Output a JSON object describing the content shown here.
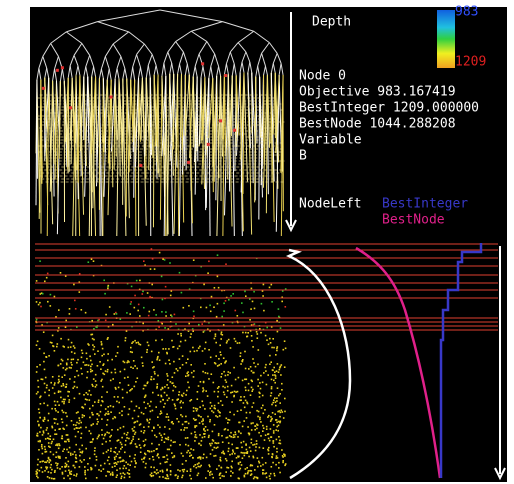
{
  "legend": {
    "axis_label": "Depth",
    "scale_top": "983",
    "scale_bottom": "1209"
  },
  "info": {
    "node": "Node 0",
    "objective": "Objective  983.167419",
    "best_integer": "BestInteger 1209.000000",
    "best_node": "BestNode 1044.288208",
    "variable": "Variable",
    "variable_value": "B"
  },
  "curve_legend": {
    "node_left": "NodeLeft",
    "best_integer": "BestInteger",
    "best_node": "BestNode"
  }
}
